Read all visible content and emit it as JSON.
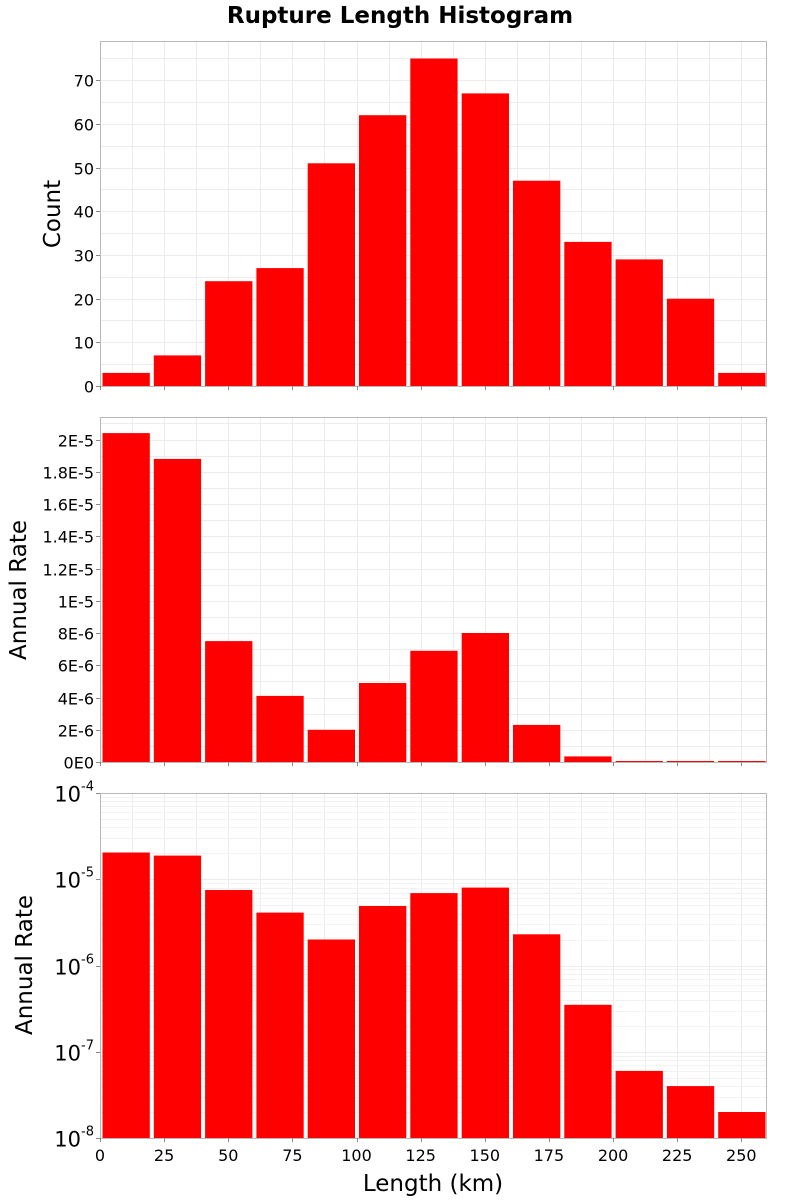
{
  "chart_data": [
    {
      "type": "bar",
      "title": "Rupture Length Histogram",
      "ylabel": "Count",
      "xlabel": "",
      "bin_starts": [
        0,
        20,
        40,
        60,
        80,
        100,
        120,
        140,
        160,
        180,
        200,
        220,
        240
      ],
      "bin_width": 20,
      "values": [
        3,
        7,
        24,
        27,
        51,
        62,
        75,
        67,
        47,
        33,
        29,
        20,
        3
      ],
      "xlim": [
        0,
        260
      ],
      "ylim": [
        0,
        79
      ],
      "yticks": [
        0,
        10,
        20,
        30,
        40,
        50,
        60,
        70
      ],
      "ytick_labels": [
        "0",
        "10",
        "20",
        "30",
        "40",
        "50",
        "60",
        "70"
      ],
      "yscale": "linear",
      "color": "#ff0000",
      "grid": true
    },
    {
      "type": "bar",
      "ylabel": "Annual Rate",
      "xlabel": "",
      "bin_starts": [
        0,
        20,
        40,
        60,
        80,
        100,
        120,
        140,
        160,
        180,
        200,
        220,
        240
      ],
      "bin_width": 20,
      "values": [
        2.04e-05,
        1.88e-05,
        7.5e-06,
        4.1e-06,
        2e-06,
        4.9e-06,
        6.9e-06,
        8e-06,
        2.3e-06,
        3.5e-07,
        6e-08,
        4e-08,
        2e-08
      ],
      "xlim": [
        0,
        260
      ],
      "ylim": [
        0,
        2.14e-05
      ],
      "yticks": [
        0,
        2e-06,
        4e-06,
        6e-06,
        8e-06,
        1e-05,
        1.2e-05,
        1.4e-05,
        1.6e-05,
        1.8e-05,
        2e-05
      ],
      "ytick_labels": [
        "0E0",
        "2E-6",
        "4E-6",
        "6E-6",
        "8E-6",
        "1E-5",
        "1.2E-5",
        "1.4E-5",
        "1.6E-5",
        "1.8E-5",
        "2E-5"
      ],
      "yscale": "linear",
      "color": "#ff0000",
      "grid": true
    },
    {
      "type": "bar",
      "ylabel": "Annual Rate",
      "xlabel": "Length (km)",
      "bin_starts": [
        0,
        20,
        40,
        60,
        80,
        100,
        120,
        140,
        160,
        180,
        200,
        220,
        240
      ],
      "bin_width": 20,
      "values": [
        2.04e-05,
        1.88e-05,
        7.5e-06,
        4.1e-06,
        2e-06,
        4.9e-06,
        6.9e-06,
        8e-06,
        2.3e-06,
        3.5e-07,
        6e-08,
        4e-08,
        2e-08
      ],
      "xlim": [
        0,
        260
      ],
      "ylim": [
        1e-08,
        0.0001
      ],
      "yticks": [
        1e-08,
        1e-07,
        1e-06,
        1e-05,
        0.0001
      ],
      "ytick_labels": [
        {
          "base": "10",
          "exp": "-8"
        },
        {
          "base": "10",
          "exp": "-7"
        },
        {
          "base": "10",
          "exp": "-6"
        },
        {
          "base": "10",
          "exp": "-5"
        },
        {
          "base": "10",
          "exp": "-4"
        }
      ],
      "xticks": [
        0,
        25,
        50,
        75,
        100,
        125,
        150,
        175,
        200,
        225,
        250
      ],
      "xtick_labels": [
        "0",
        "25",
        "50",
        "75",
        "100",
        "125",
        "150",
        "175",
        "200",
        "225",
        "250"
      ],
      "yscale": "log",
      "color": "#ff0000",
      "grid": true
    }
  ]
}
